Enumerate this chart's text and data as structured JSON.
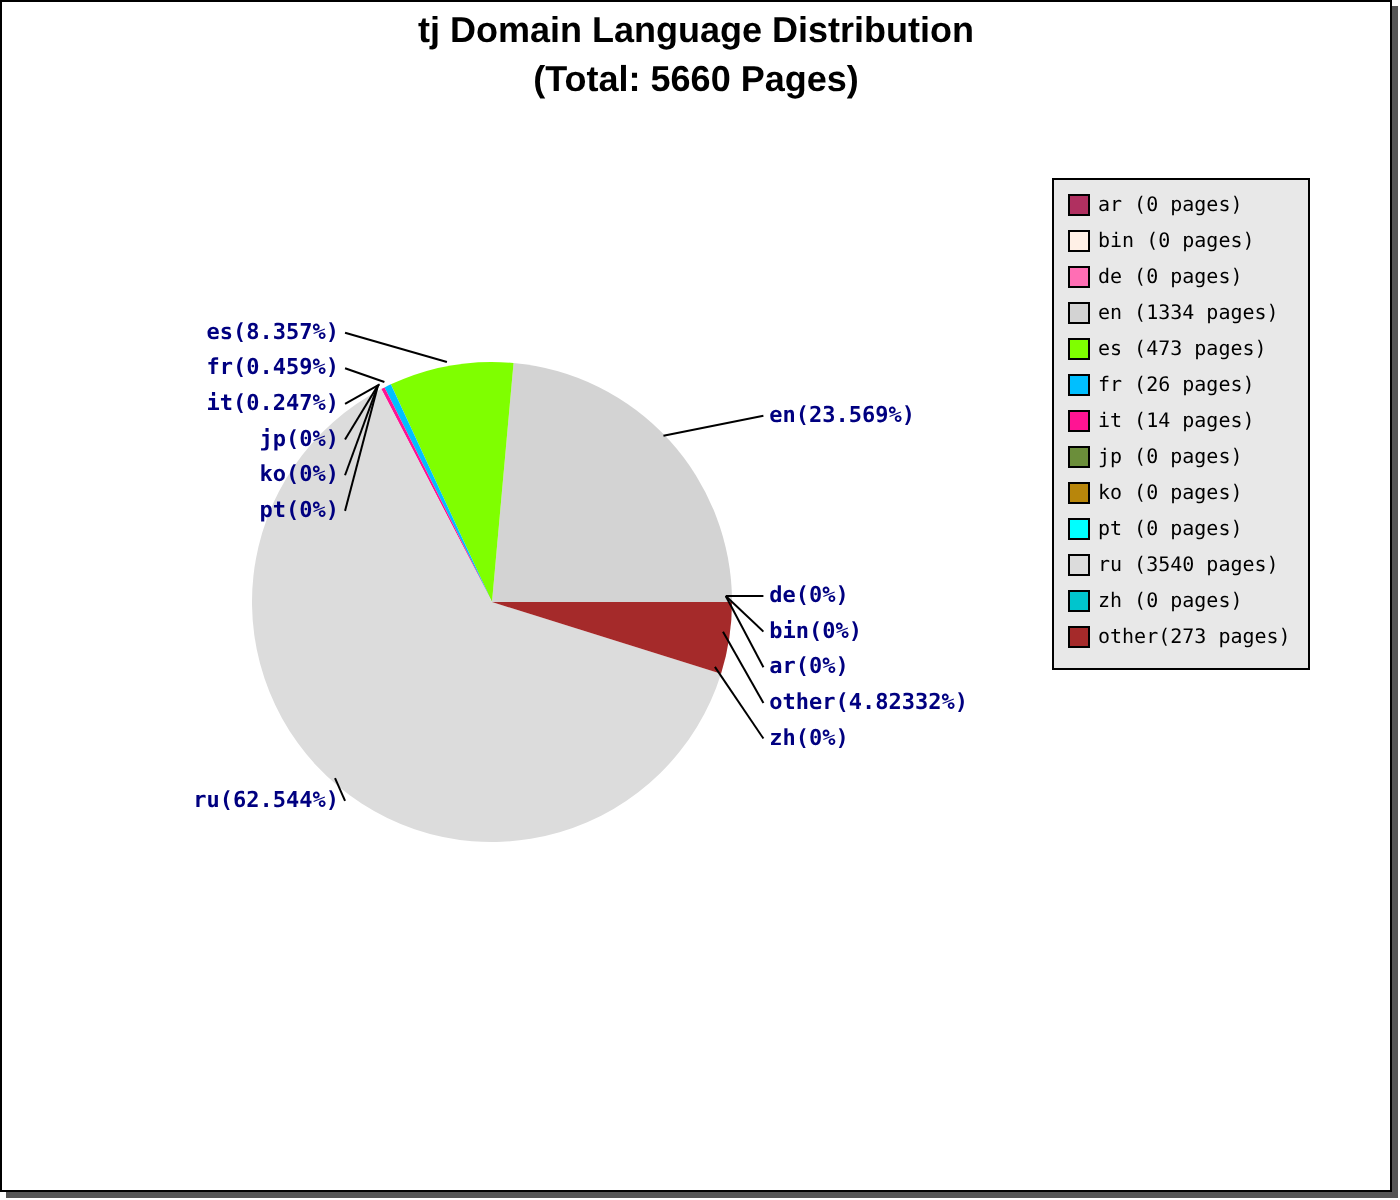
{
  "chart_data": {
    "type": "pie",
    "title": "tj Domain Language Distribution",
    "subtitle": "(Total: 5660 Pages)",
    "categories": [
      "ar (0 pages)",
      "bin (0 pages)",
      "de (0 pages)",
      "en (1334 pages)",
      "es (473 pages)",
      "fr (26 pages)",
      "it (14 pages)",
      "jp (0 pages)",
      "ko (0 pages)",
      "pt (0 pages)",
      "ru (3540 pages)",
      "zh (0 pages)",
      "other(273 pages)"
    ],
    "values": [
      0,
      0,
      0,
      1334,
      473,
      26,
      14,
      0,
      0,
      0,
      3540,
      0,
      273
    ],
    "value_labels": [
      "ar(0%)",
      "bin(0%)",
      "de(0%)",
      "en(23.569%)",
      "es(8.357%)",
      "fr(0.459%)",
      "it(0.247%)",
      "jp(0%)",
      "ko(0%)",
      "pt(0%)",
      "ru(62.544%)",
      "zh(0%)",
      "other(4.82332%)"
    ],
    "colors": [
      "#b03060",
      "#fff0e6",
      "#ff6eb4",
      "#d3d3d3",
      "#7fff00",
      "#00bfff",
      "#ff1493",
      "#6b8e3a",
      "#b8860b",
      "#00ffff",
      "#dcdcdc",
      "#00c5cd",
      "#a52a2a"
    ],
    "legend": "top right"
  }
}
